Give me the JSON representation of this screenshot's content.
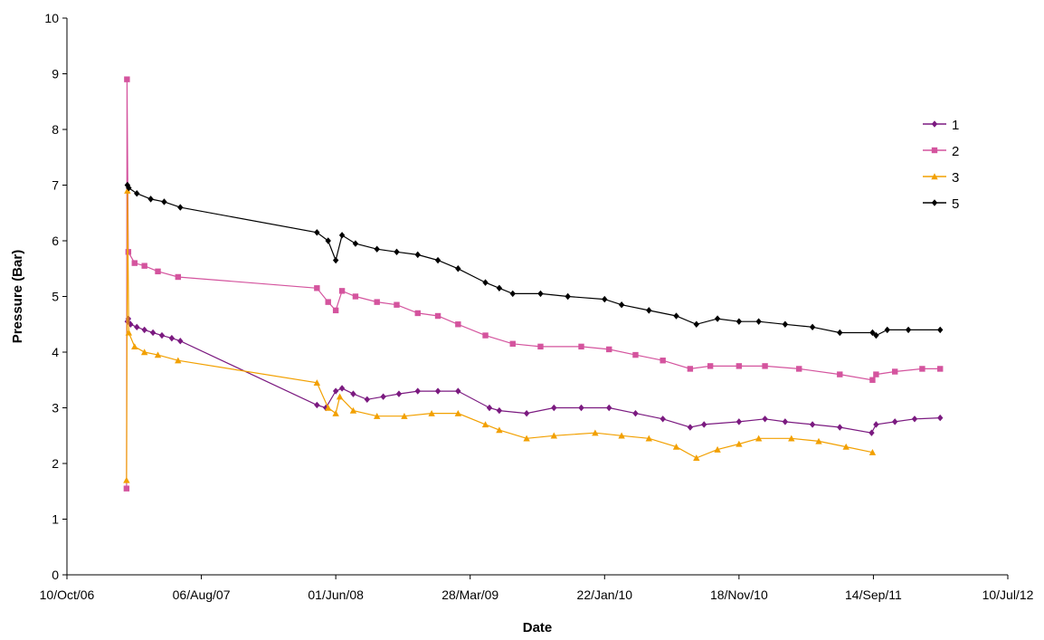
{
  "chart_data": {
    "type": "line",
    "title": "",
    "xlabel": "Date",
    "ylabel": "Pressure (Bar)",
    "xlim": [
      "2006-10-10",
      "2012-07-10"
    ],
    "ylim": [
      0,
      10
    ],
    "y_ticks": [
      0,
      1,
      2,
      3,
      4,
      5,
      6,
      7,
      8,
      9,
      10
    ],
    "x_ticks": [
      {
        "date": "2006-10-10",
        "label": "10/Oct/06"
      },
      {
        "date": "2007-08-06",
        "label": "06/Aug/07"
      },
      {
        "date": "2008-06-01",
        "label": "01/Jun/08"
      },
      {
        "date": "2009-03-28",
        "label": "28/Mar/09"
      },
      {
        "date": "2010-01-22",
        "label": "22/Jan/10"
      },
      {
        "date": "2010-11-18",
        "label": "18/Nov/10"
      },
      {
        "date": "2011-09-14",
        "label": "14/Sep/11"
      },
      {
        "date": "2012-07-10",
        "label": "10/Jul/12"
      }
    ],
    "grid": false,
    "legend_position": "right",
    "series": [
      {
        "name": "1",
        "color": "#7B1A80",
        "marker": "diamond",
        "points": [
          [
            "2007-02-22",
            4.55
          ],
          [
            "2007-02-24",
            4.6
          ],
          [
            "2007-03-01",
            4.5
          ],
          [
            "2007-03-15",
            4.45
          ],
          [
            "2007-04-01",
            4.4
          ],
          [
            "2007-04-20",
            4.35
          ],
          [
            "2007-05-10",
            4.3
          ],
          [
            "2007-06-01",
            4.25
          ],
          [
            "2007-06-20",
            4.2
          ],
          [
            "2008-04-20",
            3.05
          ],
          [
            "2008-05-10",
            3.0
          ],
          [
            "2008-06-01",
            3.3
          ],
          [
            "2008-06-15",
            3.35
          ],
          [
            "2008-07-10",
            3.25
          ],
          [
            "2008-08-10",
            3.15
          ],
          [
            "2008-09-15",
            3.2
          ],
          [
            "2008-10-20",
            3.25
          ],
          [
            "2008-12-01",
            3.3
          ],
          [
            "2009-01-15",
            3.3
          ],
          [
            "2009-03-01",
            3.3
          ],
          [
            "2009-05-10",
            3.0
          ],
          [
            "2009-06-01",
            2.95
          ],
          [
            "2009-08-01",
            2.9
          ],
          [
            "2009-10-01",
            3.0
          ],
          [
            "2009-12-01",
            3.0
          ],
          [
            "2010-02-01",
            3.0
          ],
          [
            "2010-04-01",
            2.9
          ],
          [
            "2010-06-01",
            2.8
          ],
          [
            "2010-08-01",
            2.65
          ],
          [
            "2010-09-01",
            2.7
          ],
          [
            "2010-11-18",
            2.75
          ],
          [
            "2011-01-15",
            2.8
          ],
          [
            "2011-03-01",
            2.75
          ],
          [
            "2011-05-01",
            2.7
          ],
          [
            "2011-07-01",
            2.65
          ],
          [
            "2011-09-10",
            2.55
          ],
          [
            "2011-09-20",
            2.7
          ],
          [
            "2011-11-01",
            2.75
          ],
          [
            "2011-12-15",
            2.8
          ],
          [
            "2012-02-10",
            2.82
          ]
        ]
      },
      {
        "name": "2",
        "color": "#D4549E",
        "marker": "square",
        "points": [
          [
            "2007-02-20",
            1.55
          ],
          [
            "2007-02-21",
            8.9
          ],
          [
            "2007-02-24",
            5.8
          ],
          [
            "2007-03-10",
            5.6
          ],
          [
            "2007-04-01",
            5.55
          ],
          [
            "2007-05-01",
            5.45
          ],
          [
            "2007-06-15",
            5.35
          ],
          [
            "2008-04-20",
            5.15
          ],
          [
            "2008-05-15",
            4.9
          ],
          [
            "2008-06-01",
            4.75
          ],
          [
            "2008-06-15",
            5.1
          ],
          [
            "2008-07-15",
            5.0
          ],
          [
            "2008-09-01",
            4.9
          ],
          [
            "2008-10-15",
            4.85
          ],
          [
            "2008-12-01",
            4.7
          ],
          [
            "2009-01-15",
            4.65
          ],
          [
            "2009-03-01",
            4.5
          ],
          [
            "2009-05-01",
            4.3
          ],
          [
            "2009-07-01",
            4.15
          ],
          [
            "2009-09-01",
            4.1
          ],
          [
            "2009-12-01",
            4.1
          ],
          [
            "2010-02-01",
            4.05
          ],
          [
            "2010-04-01",
            3.95
          ],
          [
            "2010-06-01",
            3.85
          ],
          [
            "2010-08-01",
            3.7
          ],
          [
            "2010-09-15",
            3.75
          ],
          [
            "2010-11-18",
            3.75
          ],
          [
            "2011-01-15",
            3.75
          ],
          [
            "2011-04-01",
            3.7
          ],
          [
            "2011-07-01",
            3.6
          ],
          [
            "2011-09-12",
            3.5
          ],
          [
            "2011-09-20",
            3.6
          ],
          [
            "2011-11-01",
            3.65
          ],
          [
            "2012-01-01",
            3.7
          ],
          [
            "2012-02-10",
            3.7
          ]
        ]
      },
      {
        "name": "3",
        "color": "#F2A000",
        "marker": "triangle",
        "points": [
          [
            "2007-02-20",
            1.7
          ],
          [
            "2007-02-22",
            6.9
          ],
          [
            "2007-02-25",
            4.35
          ],
          [
            "2007-03-10",
            4.1
          ],
          [
            "2007-04-01",
            4.0
          ],
          [
            "2007-05-01",
            3.95
          ],
          [
            "2007-06-15",
            3.85
          ],
          [
            "2008-04-20",
            3.45
          ],
          [
            "2008-05-15",
            3.0
          ],
          [
            "2008-06-01",
            2.9
          ],
          [
            "2008-06-10",
            3.2
          ],
          [
            "2008-07-10",
            2.95
          ],
          [
            "2008-09-01",
            2.85
          ],
          [
            "2008-11-01",
            2.85
          ],
          [
            "2009-01-01",
            2.9
          ],
          [
            "2009-03-01",
            2.9
          ],
          [
            "2009-05-01",
            2.7
          ],
          [
            "2009-06-01",
            2.6
          ],
          [
            "2009-08-01",
            2.45
          ],
          [
            "2009-10-01",
            2.5
          ],
          [
            "2010-01-01",
            2.55
          ],
          [
            "2010-03-01",
            2.5
          ],
          [
            "2010-05-01",
            2.45
          ],
          [
            "2010-07-01",
            2.3
          ],
          [
            "2010-08-15",
            2.1
          ],
          [
            "2010-10-01",
            2.25
          ],
          [
            "2010-11-18",
            2.35
          ],
          [
            "2011-01-01",
            2.45
          ],
          [
            "2011-03-15",
            2.45
          ],
          [
            "2011-05-15",
            2.4
          ],
          [
            "2011-07-15",
            2.3
          ],
          [
            "2011-09-12",
            2.2
          ]
        ]
      },
      {
        "name": "5",
        "color": "#000000",
        "marker": "diamond",
        "points": [
          [
            "2007-02-22",
            7.0
          ],
          [
            "2007-02-25",
            6.95
          ],
          [
            "2007-03-15",
            6.85
          ],
          [
            "2007-04-15",
            6.75
          ],
          [
            "2007-05-15",
            6.7
          ],
          [
            "2007-06-20",
            6.6
          ],
          [
            "2008-04-20",
            6.15
          ],
          [
            "2008-05-15",
            6.0
          ],
          [
            "2008-06-01",
            5.65
          ],
          [
            "2008-06-15",
            6.1
          ],
          [
            "2008-07-15",
            5.95
          ],
          [
            "2008-09-01",
            5.85
          ],
          [
            "2008-10-15",
            5.8
          ],
          [
            "2008-12-01",
            5.75
          ],
          [
            "2009-01-15",
            5.65
          ],
          [
            "2009-03-01",
            5.5
          ],
          [
            "2009-05-01",
            5.25
          ],
          [
            "2009-06-01",
            5.15
          ],
          [
            "2009-07-01",
            5.05
          ],
          [
            "2009-09-01",
            5.05
          ],
          [
            "2009-11-01",
            5.0
          ],
          [
            "2010-01-22",
            4.95
          ],
          [
            "2010-03-01",
            4.85
          ],
          [
            "2010-05-01",
            4.75
          ],
          [
            "2010-07-01",
            4.65
          ],
          [
            "2010-08-15",
            4.5
          ],
          [
            "2010-10-01",
            4.6
          ],
          [
            "2010-11-18",
            4.55
          ],
          [
            "2011-01-01",
            4.55
          ],
          [
            "2011-03-01",
            4.5
          ],
          [
            "2011-05-01",
            4.45
          ],
          [
            "2011-07-01",
            4.35
          ],
          [
            "2011-09-12",
            4.35
          ],
          [
            "2011-09-20",
            4.3
          ],
          [
            "2011-10-15",
            4.4
          ],
          [
            "2011-12-01",
            4.4
          ],
          [
            "2012-02-10",
            4.4
          ]
        ]
      }
    ]
  }
}
